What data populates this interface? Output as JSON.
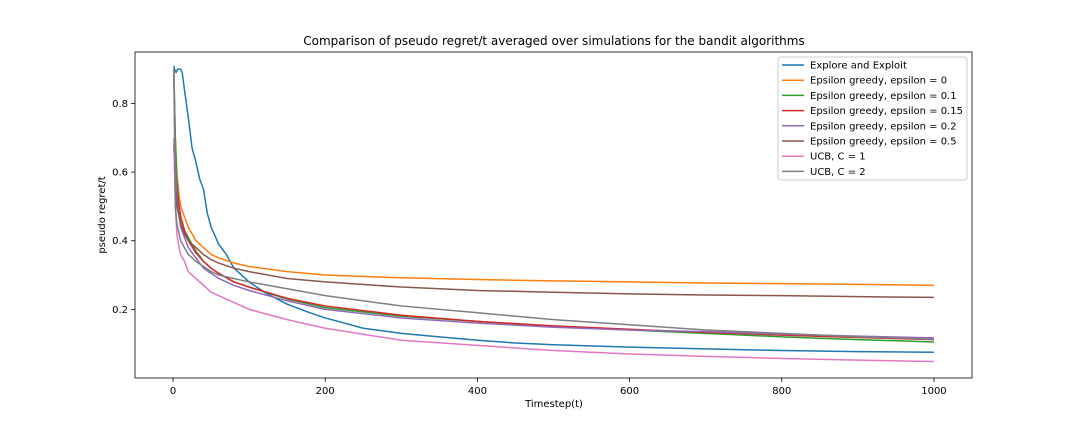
{
  "chart_data": {
    "type": "line",
    "title": "Comparison of pseudo regret/t averaged over simulations for the bandit algorithms",
    "xlabel": "Timestep(t)",
    "ylabel": "pseudo regret/t",
    "xlim": [
      -50,
      1050
    ],
    "ylim": [
      0.0,
      0.95
    ],
    "xticks": [
      0,
      200,
      400,
      600,
      800,
      1000
    ],
    "yticks": [
      0.2,
      0.4,
      0.6,
      0.8
    ],
    "xtick_labels": [
      "0",
      "200",
      "400",
      "600",
      "800",
      "1000"
    ],
    "ytick_labels": [
      "0.2",
      "0.4",
      "0.6",
      "0.8"
    ],
    "grid": false,
    "legend_position": "top-right",
    "series": [
      {
        "name": "Explore and Exploit",
        "color": "#1f77b4",
        "points": [
          [
            1,
            0.91
          ],
          [
            2,
            0.9
          ],
          [
            4,
            0.89
          ],
          [
            6,
            0.9
          ],
          [
            8,
            0.9
          ],
          [
            10,
            0.9
          ],
          [
            12,
            0.89
          ],
          [
            15,
            0.84
          ],
          [
            20,
            0.76
          ],
          [
            25,
            0.67
          ],
          [
            30,
            0.63
          ],
          [
            35,
            0.58
          ],
          [
            40,
            0.55
          ],
          [
            45,
            0.48
          ],
          [
            50,
            0.44
          ],
          [
            60,
            0.39
          ],
          [
            70,
            0.36
          ],
          [
            80,
            0.32
          ],
          [
            100,
            0.28
          ],
          [
            120,
            0.25
          ],
          [
            150,
            0.215
          ],
          [
            180,
            0.19
          ],
          [
            200,
            0.175
          ],
          [
            250,
            0.145
          ],
          [
            300,
            0.13
          ],
          [
            350,
            0.12
          ],
          [
            400,
            0.11
          ],
          [
            450,
            0.102
          ],
          [
            500,
            0.097
          ],
          [
            600,
            0.09
          ],
          [
            700,
            0.085
          ],
          [
            800,
            0.08
          ],
          [
            900,
            0.077
          ],
          [
            1000,
            0.075
          ]
        ]
      },
      {
        "name": "Epsilon greedy, epsilon = 0",
        "color": "#ff7f0e",
        "points": [
          [
            1,
            0.9
          ],
          [
            3,
            0.7
          ],
          [
            5,
            0.6
          ],
          [
            8,
            0.53
          ],
          [
            10,
            0.5
          ],
          [
            15,
            0.47
          ],
          [
            20,
            0.44
          ],
          [
            30,
            0.4
          ],
          [
            40,
            0.38
          ],
          [
            50,
            0.36
          ],
          [
            60,
            0.35
          ],
          [
            80,
            0.335
          ],
          [
            100,
            0.325
          ],
          [
            150,
            0.31
          ],
          [
            200,
            0.3
          ],
          [
            300,
            0.292
          ],
          [
            400,
            0.287
          ],
          [
            500,
            0.283
          ],
          [
            600,
            0.28
          ],
          [
            700,
            0.277
          ],
          [
            800,
            0.275
          ],
          [
            900,
            0.273
          ],
          [
            1000,
            0.27
          ]
        ]
      },
      {
        "name": "Epsilon greedy, epsilon = 0.1",
        "color": "#2ca02c",
        "points": [
          [
            1,
            0.9
          ],
          [
            3,
            0.7
          ],
          [
            5,
            0.58
          ],
          [
            8,
            0.5
          ],
          [
            10,
            0.47
          ],
          [
            15,
            0.43
          ],
          [
            20,
            0.41
          ],
          [
            30,
            0.37
          ],
          [
            40,
            0.34
          ],
          [
            50,
            0.32
          ],
          [
            60,
            0.305
          ],
          [
            80,
            0.28
          ],
          [
            100,
            0.265
          ],
          [
            150,
            0.23
          ],
          [
            200,
            0.205
          ],
          [
            300,
            0.18
          ],
          [
            400,
            0.165
          ],
          [
            500,
            0.15
          ],
          [
            600,
            0.14
          ],
          [
            700,
            0.13
          ],
          [
            800,
            0.12
          ],
          [
            900,
            0.112
          ],
          [
            1000,
            0.105
          ]
        ]
      },
      {
        "name": "Epsilon greedy, epsilon = 0.15",
        "color": "#d62728",
        "points": [
          [
            1,
            0.68
          ],
          [
            3,
            0.6
          ],
          [
            5,
            0.55
          ],
          [
            8,
            0.5
          ],
          [
            10,
            0.47
          ],
          [
            15,
            0.43
          ],
          [
            20,
            0.4
          ],
          [
            30,
            0.365
          ],
          [
            40,
            0.34
          ],
          [
            50,
            0.32
          ],
          [
            60,
            0.305
          ],
          [
            80,
            0.28
          ],
          [
            100,
            0.265
          ],
          [
            150,
            0.232
          ],
          [
            200,
            0.21
          ],
          [
            300,
            0.183
          ],
          [
            400,
            0.165
          ],
          [
            500,
            0.152
          ],
          [
            600,
            0.142
          ],
          [
            700,
            0.133
          ],
          [
            800,
            0.125
          ],
          [
            900,
            0.118
          ],
          [
            1000,
            0.112
          ]
        ]
      },
      {
        "name": "Epsilon greedy, epsilon = 0.2",
        "color": "#9467bd",
        "points": [
          [
            1,
            0.9
          ],
          [
            3,
            0.62
          ],
          [
            5,
            0.53
          ],
          [
            8,
            0.47
          ],
          [
            10,
            0.44
          ],
          [
            15,
            0.41
          ],
          [
            20,
            0.38
          ],
          [
            30,
            0.35
          ],
          [
            40,
            0.32
          ],
          [
            50,
            0.305
          ],
          [
            60,
            0.29
          ],
          [
            80,
            0.27
          ],
          [
            100,
            0.255
          ],
          [
            150,
            0.225
          ],
          [
            200,
            0.2
          ],
          [
            300,
            0.175
          ],
          [
            400,
            0.16
          ],
          [
            500,
            0.148
          ],
          [
            600,
            0.14
          ],
          [
            700,
            0.135
          ],
          [
            800,
            0.128
          ],
          [
            900,
            0.122
          ],
          [
            1000,
            0.117
          ]
        ]
      },
      {
        "name": "Epsilon greedy, epsilon = 0.5",
        "color": "#8c564b",
        "points": [
          [
            1,
            0.68
          ],
          [
            3,
            0.55
          ],
          [
            5,
            0.5
          ],
          [
            8,
            0.47
          ],
          [
            10,
            0.45
          ],
          [
            15,
            0.42
          ],
          [
            20,
            0.4
          ],
          [
            30,
            0.38
          ],
          [
            40,
            0.36
          ],
          [
            50,
            0.345
          ],
          [
            60,
            0.335
          ],
          [
            80,
            0.32
          ],
          [
            100,
            0.31
          ],
          [
            150,
            0.29
          ],
          [
            200,
            0.28
          ],
          [
            300,
            0.265
          ],
          [
            400,
            0.255
          ],
          [
            500,
            0.25
          ],
          [
            600,
            0.245
          ],
          [
            700,
            0.242
          ],
          [
            800,
            0.24
          ],
          [
            900,
            0.237
          ],
          [
            1000,
            0.235
          ]
        ]
      },
      {
        "name": "UCB, C = 1",
        "color": "#e377c2",
        "points": [
          [
            1,
            0.7
          ],
          [
            3,
            0.5
          ],
          [
            5,
            0.42
          ],
          [
            8,
            0.38
          ],
          [
            10,
            0.36
          ],
          [
            15,
            0.34
          ],
          [
            20,
            0.31
          ],
          [
            30,
            0.29
          ],
          [
            40,
            0.27
          ],
          [
            50,
            0.25
          ],
          [
            60,
            0.24
          ],
          [
            80,
            0.22
          ],
          [
            100,
            0.2
          ],
          [
            150,
            0.17
          ],
          [
            200,
            0.145
          ],
          [
            300,
            0.11
          ],
          [
            400,
            0.095
          ],
          [
            500,
            0.08
          ],
          [
            600,
            0.07
          ],
          [
            700,
            0.063
          ],
          [
            800,
            0.057
          ],
          [
            900,
            0.052
          ],
          [
            1000,
            0.048
          ]
        ]
      },
      {
        "name": "UCB, C = 2",
        "color": "#7f7f7f",
        "points": [
          [
            1,
            0.9
          ],
          [
            3,
            0.5
          ],
          [
            5,
            0.45
          ],
          [
            8,
            0.42
          ],
          [
            10,
            0.4
          ],
          [
            15,
            0.38
          ],
          [
            20,
            0.36
          ],
          [
            30,
            0.34
          ],
          [
            40,
            0.325
          ],
          [
            50,
            0.31
          ],
          [
            60,
            0.3
          ],
          [
            80,
            0.29
          ],
          [
            100,
            0.28
          ],
          [
            150,
            0.26
          ],
          [
            200,
            0.24
          ],
          [
            300,
            0.21
          ],
          [
            400,
            0.19
          ],
          [
            500,
            0.17
          ],
          [
            600,
            0.155
          ],
          [
            700,
            0.14
          ],
          [
            800,
            0.13
          ],
          [
            900,
            0.12
          ],
          [
            1000,
            0.113
          ]
        ]
      }
    ]
  }
}
